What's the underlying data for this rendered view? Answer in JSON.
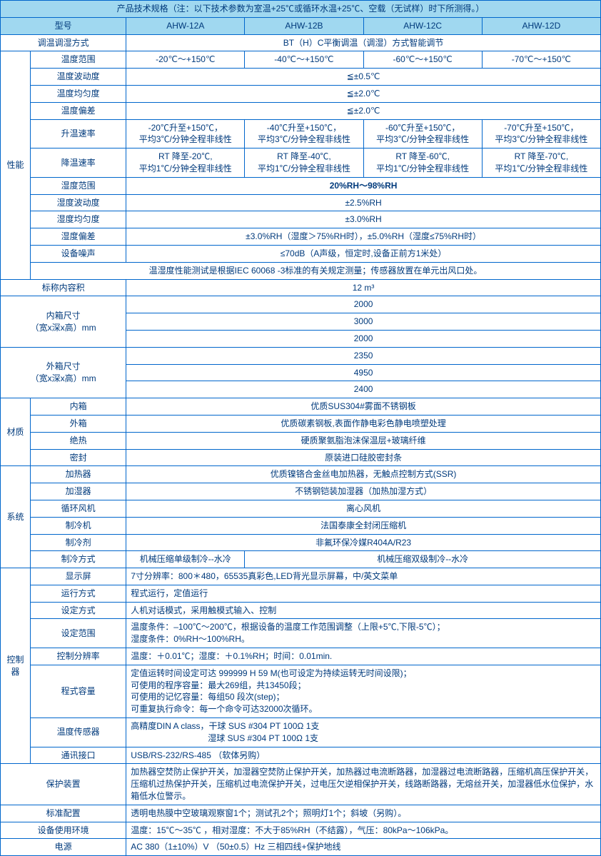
{
  "title": "产品技术规格（注：以下技术参数为室温+25℃或循环水温+25℃、空载（无试样）时下所测得。）",
  "h_model": "型号",
  "models": [
    "AHW-12A",
    "AHW-12B",
    "AHW-12C",
    "AHW-12D"
  ],
  "r_mode_l": "调温调湿方式",
  "r_mode_v": "BT（H）C平衡调温（调湿）方式智能调节",
  "cat_perf": "性能",
  "r_trange_l": "温度范围",
  "r_trange": [
    "-20℃～+150℃",
    "-40℃～+150℃",
    "-60℃～+150℃",
    "-70℃～+150℃"
  ],
  "r_tfluct_l": "温度波动度",
  "r_tfluct_v": "≦±0.5℃",
  "r_tunif_l": "温度均匀度",
  "r_tunif_v": "≦±2.0℃",
  "r_tdev_l": "温度偏差",
  "r_tdev_v": "≦±2.0℃",
  "r_heat_l": "升温速率",
  "r_heat": [
    "-20℃升至+150℃，\n平均3℃/分钟全程非线性",
    "-40℃升至+150℃，\n平均3℃/分钟全程非线性",
    "-60℃升至+150℃，\n平均3℃/分钟全程非线性",
    "-70℃升至+150℃，\n平均3℃/分钟全程非线性"
  ],
  "r_cool_l": "降温速率",
  "r_cool": [
    "RT 降至-20℃,\n平均1℃/分钟全程非线性",
    "RT 降至-40℃,\n平均1℃/分钟全程非线性",
    "RT 降至-60℃,\n平均1℃/分钟全程非线性",
    "RT 降至-70℃,\n平均1℃/分钟全程非线性"
  ],
  "r_hrange_l": "湿度范围",
  "r_hrange_v": "20%RH～98%RH",
  "r_hfluct_l": "湿度波动度",
  "r_hfluct_v": "±2.5%RH",
  "r_hunif_l": "湿度均匀度",
  "r_hunif_v": "±3.0%RH",
  "r_hdev_l": "湿度偏差",
  "r_hdev_v": "±3.0%RH（湿度＞75%RH时），±5.0%RH（湿度≤75%RH时）",
  "r_noise_l": "设备噪声",
  "r_noise_v": "≤70dB（A声级，恒定时,设备正前方1米处）",
  "r_note": "温湿度性能测试是根据IEC 60068 -3标准的有关规定测量；传感器放置在单元出风口处。",
  "r_nvol_l": "标称内容积",
  "r_nvol_v": "12 m³",
  "r_inner_l": "内箱尺寸\n（宽x深x高）mm",
  "r_inner": [
    "2000",
    "3000",
    "2000"
  ],
  "r_outer_l": "外箱尺寸\n（宽x深x高）mm",
  "r_outer": [
    "2350",
    "4950",
    "2400"
  ],
  "cat_mat": "材质",
  "r_mat1_l": "内箱",
  "r_mat1_v": "优质SUS304#雾面不锈钢板",
  "r_mat2_l": "外箱",
  "r_mat2_v": "优质碳素钢板,表面作静电彩色静电喷塑处理",
  "r_mat3_l": "绝热",
  "r_mat3_v": "硬质聚氨脂泡沫保温层+玻璃纤维",
  "r_mat4_l": "密封",
  "r_mat4_v": "原装进口硅胶密封条",
  "cat_sys": "系统",
  "r_sys1_l": "加热器",
  "r_sys1_v": "优质镍铬合金丝电加热器，无触点控制方式(SSR)",
  "r_sys2_l": "加湿器",
  "r_sys2_v": "不锈钢铠装加湿器（加热加湿方式）",
  "r_sys3_l": "循环风机",
  "r_sys3_v": "离心风机",
  "r_sys4_l": "制冷机",
  "r_sys4_v": "法国泰康全封闭压缩机",
  "r_sys5_l": "制冷剂",
  "r_sys5_v": "非氟环保冷媒R404A/R23",
  "r_sys6_l": "制冷方式",
  "r_sys6_a": "机械压缩单级制冷--水冷",
  "r_sys6_b": "机械压缩双级制冷--水冷",
  "cat_ctrl": "控制器",
  "r_c1_l": "显示屏",
  "r_c1_v": "7寸分辨率：800＊480，65535真彩色,LED背光显示屏幕，中/英文菜单",
  "r_c2_l": "运行方式",
  "r_c2_v": "程式运行，定值运行",
  "r_c3_l": "设定方式",
  "r_c3_v": "人机对话模式，采用触模式输入、控制",
  "r_c4_l": "设定范围",
  "r_c4_v": "温度条件：–100℃～200℃，根据设备的温度工作范围调整（上限+5℃,下限-5℃）；\n湿度条件：0%RH～100%RH。",
  "r_c5_l": "控制分辨率",
  "r_c5_v": "温度：＋0.01℃；湿度：＋0.1%RH；时间：0.01min.",
  "r_c6_l": "程式容量",
  "r_c6_v": "定值运转时间设定可达 999999 H 59 M(也可设定为持续运转无时间设限)；\n可使用的程序容量：最大269组，共13450段；\n可使用的记忆容量：每组50 段次(step)；\n可重复执行命令：每一个命令可达32000次循环。",
  "r_c7_l": "温度传感器",
  "r_c7_v": "高精度DIN A class，干球 SUS #304 PT 100Ω 1支\n　　　　　　　　　湿球 SUS #304 PT 100Ω 1支",
  "r_c8_l": "通讯接口",
  "r_c8_v": "USB/RS-232/RS-485 （软体另购）",
  "r_prot_l": "保护装置",
  "r_prot_v": "加热器空焚防止保护开关，加湿器空焚防止保护开关，加热器过电流断路器，加湿器过电流断路器，压缩机高压保护开关，压缩机过热保护开关，压缩机过电流保护开关，过电压欠逆相保护开关，线路断路器，无熔丝开关，加湿器低水位保护，水箱低水位警示。",
  "r_std_l": "标准配置",
  "r_std_v": "透明电热膜中空玻璃观察窗1个；测试孔2个；照明灯1个；斜坡（另购）。",
  "r_env_l": "设备使用环境",
  "r_env_v": "温度：15℃～35℃ ，相对湿度：不大于85%RH（不结露），气压：80kPa～106kPa。",
  "r_pwr_l": "电源",
  "r_pwr_v": "AC 380（1±10%）V （50±0.5）Hz 三相四线+保护地线"
}
